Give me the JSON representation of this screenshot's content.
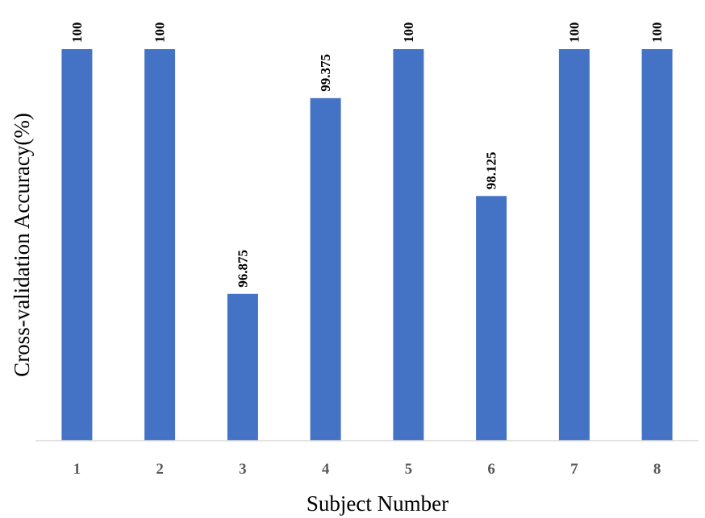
{
  "chart_data": {
    "type": "bar",
    "title": "",
    "xlabel": "Subject Number",
    "ylabel": "Cross-validation Accuracy(%)",
    "categories": [
      "1",
      "2",
      "3",
      "4",
      "5",
      "6",
      "7",
      "8"
    ],
    "values": [
      100,
      100,
      96.875,
      99.375,
      100,
      98.125,
      100,
      100
    ],
    "data_labels": [
      "100",
      "100",
      "96.875",
      "99.375",
      "100",
      "98.125",
      "100",
      "100"
    ],
    "ylim": [
      95.0,
      100
    ],
    "grid": false,
    "legend": "none",
    "bar_color": "#4472C4",
    "axis_color": "#D9D9D9"
  }
}
